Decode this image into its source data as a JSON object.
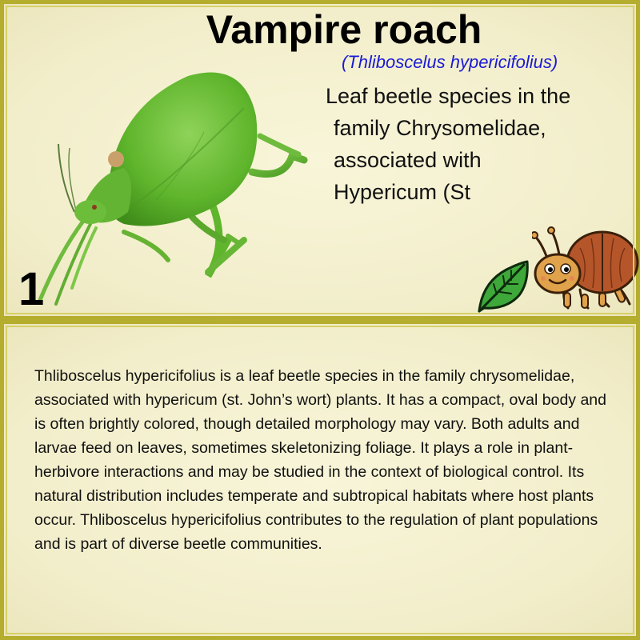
{
  "card": {
    "title": "Vampire roach",
    "scientific_name": "(Thliboscelus hypericifolius)",
    "subtitle_lines": [
      "Leaf beetle species in the",
      "family Chrysomelidae,",
      "associated with",
      "Hypericum (St"
    ],
    "number": "1",
    "illustration": "green-katydid-insect",
    "icons": [
      "leaf-icon",
      "beetle-icon"
    ],
    "description": "Thliboscelus hypericifolius is a leaf beetle species in the family chrysomelidae, associated with hypericum (st. John’s wort) plants. It has a compact, oval body and is often brightly colored, though detailed morphology may vary. Both adults and larvae feed on leaves, sometimes skeletonizing foliage. It plays a role in plant-herbivore interactions and may be studied in the context of biological control. Its natural distribution includes temperate and subtropical habitats where host plants occur. Thliboscelus hypericifolius contributes to the regulation of plant populations and is part of diverse beetle communities."
  },
  "colors": {
    "frame": "#b5ad2e",
    "background": "#f4f0cc",
    "scientific_name": "#1a1ad6"
  }
}
